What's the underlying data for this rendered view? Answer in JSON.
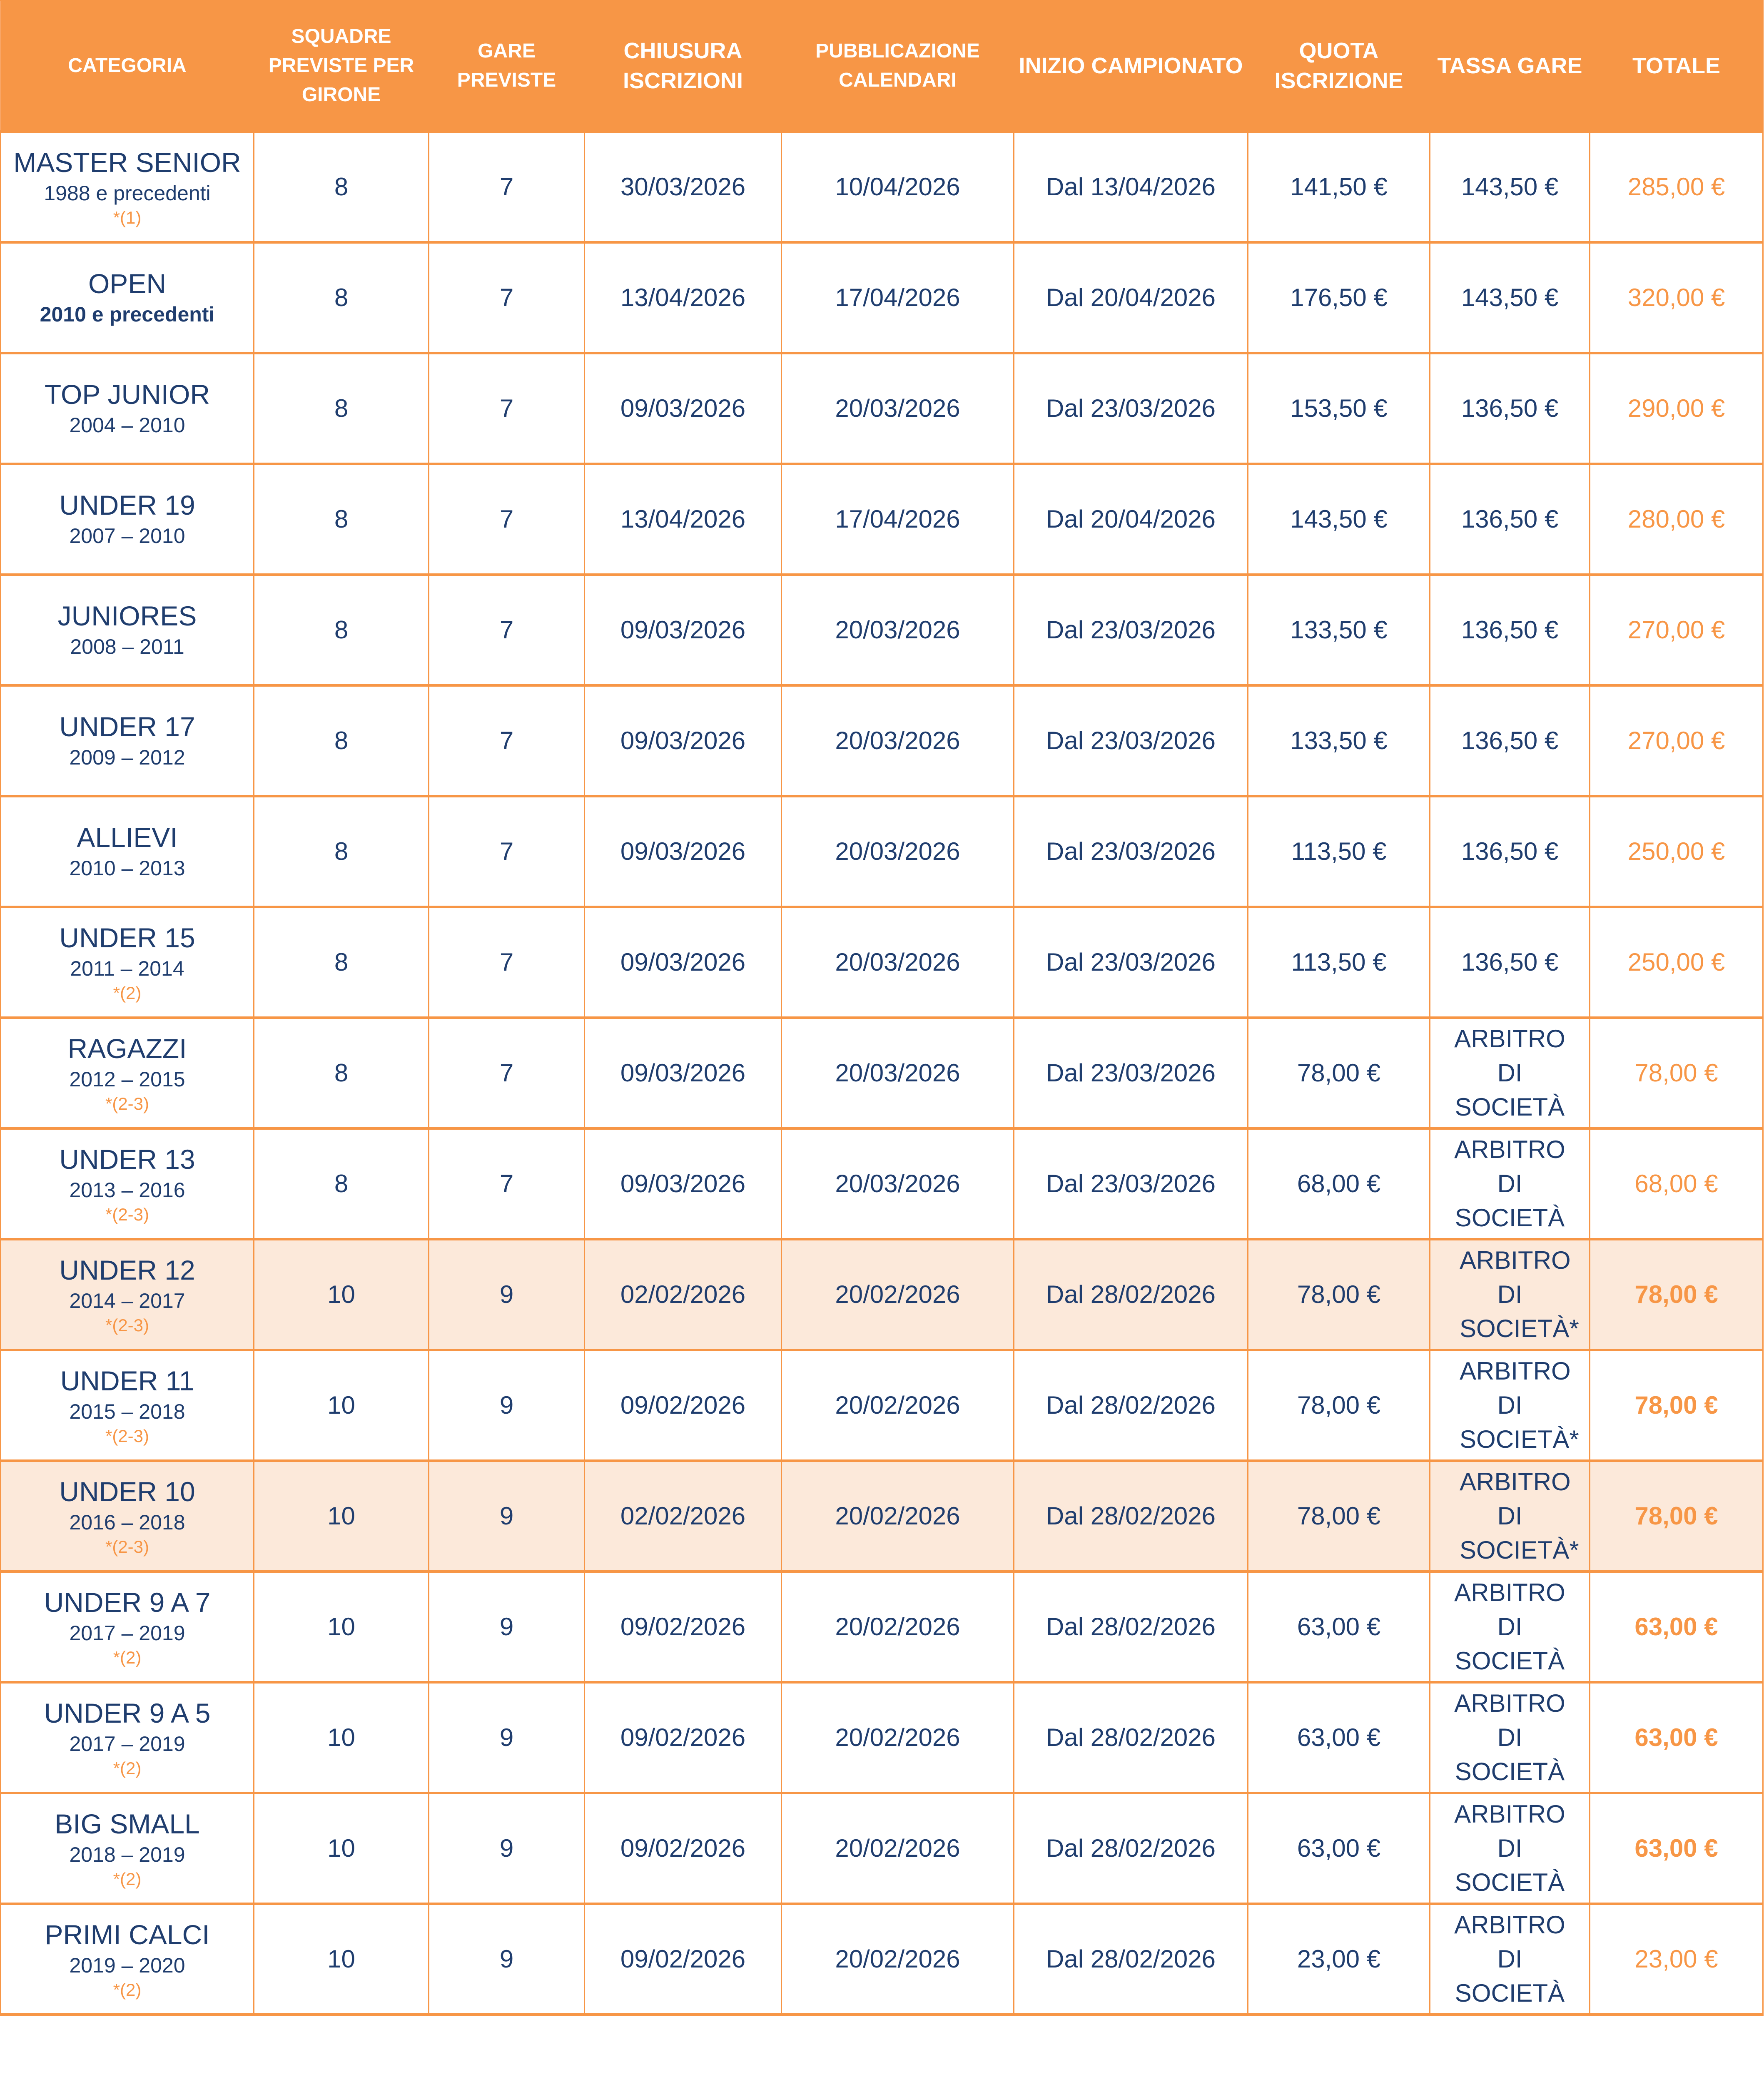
{
  "colors": {
    "accent": "#F79646",
    "text": "#1F3D6E",
    "highlight_row": "#FCE9DA"
  },
  "headers": [
    "CATEGORIA",
    "SQUADRE PREVISTE PER GIRONE",
    "GARE PREVISTE",
    "CHIUSURA ISCRIZIONI",
    "PUBBLICAZIONE CALENDARI",
    "INIZIO CAMPIONATO",
    "QUOTA ISCRIZIONE",
    "TASSA GARE",
    "TOTALE"
  ],
  "rows": [
    {
      "categoria": "MASTER SENIOR",
      "anni": "1988 e precedenti",
      "nota": "*(1)",
      "squadre": "8",
      "gare": "7",
      "chiusura": "30/03/2026",
      "pubblicazione": "10/04/2026",
      "inizio": "Dal 13/04/2026",
      "quota": "141,50 €",
      "tassa": "143,50 €",
      "totale": "285,00 €",
      "highlight": false,
      "bold_total": false
    },
    {
      "categoria": "OPEN",
      "anni": "2010 e precedenti",
      "nota": "",
      "squadre": "8",
      "gare": "7",
      "chiusura": "13/04/2026",
      "pubblicazione": "17/04/2026",
      "inizio": "Dal 20/04/2026",
      "quota": "176,50 €",
      "tassa": "143,50 €",
      "totale": "320,00 €",
      "highlight": false,
      "bold_total": false,
      "bold_years": true
    },
    {
      "categoria": "TOP JUNIOR",
      "anni": "2004 – 2010",
      "nota": "",
      "squadre": "8",
      "gare": "7",
      "chiusura": "09/03/2026",
      "pubblicazione": "20/03/2026",
      "inizio": "Dal 23/03/2026",
      "quota": "153,50 €",
      "tassa": "136,50 €",
      "totale": "290,00 €",
      "highlight": false,
      "bold_total": false
    },
    {
      "categoria": "UNDER 19",
      "anni": "2007 – 2010",
      "nota": "",
      "squadre": "8",
      "gare": "7",
      "chiusura": "13/04/2026",
      "pubblicazione": "17/04/2026",
      "inizio": "Dal 20/04/2026",
      "quota": "143,50 €",
      "tassa": "136,50 €",
      "totale": "280,00 €",
      "highlight": false,
      "bold_total": false
    },
    {
      "categoria": "JUNIORES",
      "anni": "2008 – 2011",
      "nota": "",
      "squadre": "8",
      "gare": "7",
      "chiusura": "09/03/2026",
      "pubblicazione": "20/03/2026",
      "inizio": "Dal 23/03/2026",
      "quota": "133,50 €",
      "tassa": "136,50 €",
      "totale": "270,00 €",
      "highlight": false,
      "bold_total": false
    },
    {
      "categoria": "UNDER 17",
      "anni": "2009 – 2012",
      "nota": "",
      "squadre": "8",
      "gare": "7",
      "chiusura": "09/03/2026",
      "pubblicazione": "20/03/2026",
      "inizio": "Dal 23/03/2026",
      "quota": "133,50 €",
      "tassa": "136,50 €",
      "totale": "270,00 €",
      "highlight": false,
      "bold_total": false
    },
    {
      "categoria": "ALLIEVI",
      "anni": "2010 – 2013",
      "nota": "",
      "squadre": "8",
      "gare": "7",
      "chiusura": "09/03/2026",
      "pubblicazione": "20/03/2026",
      "inizio": "Dal 23/03/2026",
      "quota": "113,50 €",
      "tassa": "136,50 €",
      "totale": "250,00 €",
      "highlight": false,
      "bold_total": false
    },
    {
      "categoria": "UNDER 15",
      "anni": "2011 – 2014",
      "nota": "*(2)",
      "squadre": "8",
      "gare": "7",
      "chiusura": "09/03/2026",
      "pubblicazione": "20/03/2026",
      "inizio": "Dal 23/03/2026",
      "quota": "113,50 €",
      "tassa": "136,50 €",
      "totale": "250,00 €",
      "highlight": false,
      "bold_total": false
    },
    {
      "categoria": "RAGAZZI",
      "anni": "2012 – 2015",
      "nota": "*(2-3)",
      "squadre": "8",
      "gare": "7",
      "chiusura": "09/03/2026",
      "pubblicazione": "20/03/2026",
      "inizio": "Dal 23/03/2026",
      "quota": "78,00 €",
      "tassa": "ARBITRO DI SOCIETÀ",
      "totale": "78,00 €",
      "highlight": false,
      "bold_total": false
    },
    {
      "categoria": "UNDER 13",
      "anni": "2013 – 2016",
      "nota": "*(2-3)",
      "squadre": "8",
      "gare": "7",
      "chiusura": "09/03/2026",
      "pubblicazione": "20/03/2026",
      "inizio": "Dal 23/03/2026",
      "quota": "68,00 €",
      "tassa": "ARBITRO DI SOCIETÀ",
      "totale": "68,00 €",
      "highlight": false,
      "bold_total": false
    },
    {
      "categoria": "UNDER 12",
      "anni": "2014 – 2017",
      "nota": "*(2-3)",
      "squadre": "10",
      "gare": "9",
      "chiusura": "02/02/2026",
      "pubblicazione": "20/02/2026",
      "inizio": "Dal 28/02/2026",
      "quota": "78,00 €",
      "tassa": "ARBITRO DI SOCIETÀ*",
      "totale": "78,00 €",
      "highlight": true,
      "bold_total": true,
      "narrow_tassa": true
    },
    {
      "categoria": "UNDER 11",
      "anni": "2015 – 2018",
      "nota": "*(2-3)",
      "squadre": "10",
      "gare": "9",
      "chiusura": "09/02/2026",
      "pubblicazione": "20/02/2026",
      "inizio": "Dal 28/02/2026",
      "quota": "78,00 €",
      "tassa": "ARBITRO DI SOCIETÀ*",
      "totale": "78,00 €",
      "highlight": false,
      "bold_total": true,
      "narrow_tassa": true
    },
    {
      "categoria": "UNDER 10",
      "anni": "2016 – 2018",
      "nota": "*(2-3)",
      "squadre": "10",
      "gare": "9",
      "chiusura": "02/02/2026",
      "pubblicazione": "20/02/2026",
      "inizio": "Dal 28/02/2026",
      "quota": "78,00 €",
      "tassa": "ARBITRO DI SOCIETÀ*",
      "totale": "78,00 €",
      "highlight": true,
      "bold_total": true,
      "narrow_tassa": true
    },
    {
      "categoria": "UNDER 9 A 7",
      "anni": "2017 – 2019",
      "nota": "*(2)",
      "squadre": "10",
      "gare": "9",
      "chiusura": "09/02/2026",
      "pubblicazione": "20/02/2026",
      "inizio": "Dal 28/02/2026",
      "quota": "63,00 €",
      "tassa": "ARBITRO DI SOCIETÀ",
      "totale": "63,00 €",
      "highlight": false,
      "bold_total": true
    },
    {
      "categoria": "UNDER 9 A 5",
      "anni": "2017 – 2019",
      "nota": "*(2)",
      "squadre": "10",
      "gare": "9",
      "chiusura": "09/02/2026",
      "pubblicazione": "20/02/2026",
      "inizio": "Dal 28/02/2026",
      "quota": "63,00 €",
      "tassa": "ARBITRO DI SOCIETÀ",
      "totale": "63,00 €",
      "highlight": false,
      "bold_total": true
    },
    {
      "categoria": "BIG SMALL",
      "anni": "2018 – 2019",
      "nota": "*(2)",
      "squadre": "10",
      "gare": "9",
      "chiusura": "09/02/2026",
      "pubblicazione": "20/02/2026",
      "inizio": "Dal 28/02/2026",
      "quota": "63,00 €",
      "tassa": "ARBITRO DI SOCIETÀ",
      "totale": "63,00 €",
      "highlight": false,
      "bold_total": true
    },
    {
      "categoria": "PRIMI CALCI",
      "anni": "2019 – 2020",
      "nota": "*(2)",
      "squadre": "10",
      "gare": "9",
      "chiusura": "09/02/2026",
      "pubblicazione": "20/02/2026",
      "inizio": "Dal 28/02/2026",
      "quota": "23,00 €",
      "tassa": "ARBITRO DI SOCIETÀ",
      "totale": "23,00 €",
      "highlight": false,
      "bold_total": false
    }
  ]
}
